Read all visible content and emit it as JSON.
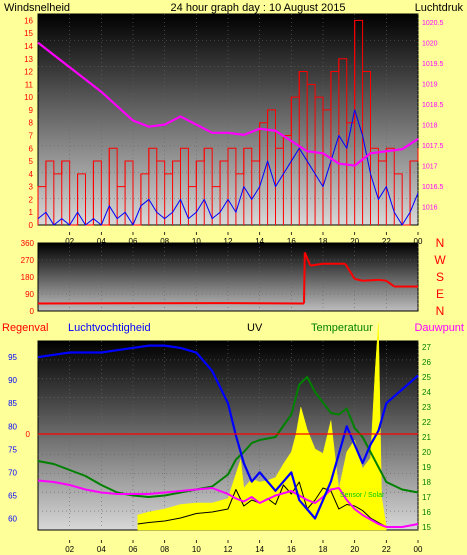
{
  "colors": {
    "background": "#ffff99",
    "wind": "#ff0000",
    "gust": "#0000ff",
    "pressure": "#ff00ff",
    "direction": "#ff0000",
    "rain": "#ff0000",
    "humidity": "#0000ff",
    "uv": "#ffff00",
    "temperature": "#008000",
    "dewpoint": "#ff00ff",
    "solar": "#000000",
    "title": "#0000ff"
  },
  "panel1": {
    "title_left": "Windsnelheid",
    "title_center": "24 hour graph day : 10 August 2015",
    "title_right": "Luchtdruk"
  },
  "panel3": {
    "label_rain": "Regenval",
    "label_humidity": "Luchtvochtigheid",
    "label_uv": "UV",
    "label_temperature": "Temperatuur",
    "label_dewpoint": "Dauwpunt",
    "inset_label": "Sensor / Solar"
  },
  "chart_data": [
    {
      "type": "line",
      "title": "24 hour graph day : 10 August 2015",
      "x_tick_labels": [
        "02",
        "04",
        "06",
        "08",
        "10",
        "12",
        "14",
        "16",
        "18",
        "20",
        "22",
        "00"
      ],
      "y_left_label": "Windsnelheid",
      "y_left_ticks": [
        0,
        1,
        2,
        3,
        4,
        5,
        6,
        7,
        8,
        9,
        10,
        11,
        12,
        13,
        14,
        15,
        16
      ],
      "y_left_range": [
        0,
        16.5
      ],
      "y_right_label": "Luchtdruk",
      "y_right_ticks": [
        1016,
        1016.5,
        1017,
        1017.5,
        1018,
        1018.5,
        1019,
        1019.5,
        1020,
        1020.5
      ],
      "y_right_range": [
        1015.55,
        1020.7
      ],
      "series": [
        {
          "name": "Windsnelheid (max)",
          "x": [
            0,
            0.5,
            1,
            1.5,
            2,
            2.5,
            3,
            3.5,
            4,
            4.5,
            5,
            5.5,
            6,
            6.5,
            7,
            7.5,
            8,
            8.5,
            9,
            9.5,
            10,
            10.5,
            11,
            11.5,
            12,
            12.5,
            13,
            13.5,
            14,
            14.5,
            15,
            15.5,
            16,
            16.5,
            17,
            17.5,
            18,
            18.5,
            19,
            19.5,
            20,
            20.5,
            21,
            21.5,
            22,
            22.5,
            23,
            23.5,
            24
          ],
          "values": [
            3,
            5,
            4,
            5,
            0,
            4,
            0,
            5,
            0,
            6,
            3,
            5,
            0,
            4,
            6,
            5,
            4,
            5,
            6,
            3,
            5,
            6,
            3,
            5,
            6,
            4,
            6,
            5,
            8,
            9,
            6,
            7,
            10,
            12,
            11,
            10,
            9,
            12,
            13,
            8,
            16,
            12,
            6,
            5,
            6,
            4,
            0,
            5,
            6
          ]
        },
        {
          "name": "Windsnelheid (gem)",
          "x": [
            0,
            0.5,
            1,
            1.5,
            2,
            2.5,
            3,
            3.5,
            4,
            4.5,
            5,
            5.5,
            6,
            6.5,
            7,
            7.5,
            8,
            8.5,
            9,
            9.5,
            10,
            10.5,
            11,
            11.5,
            12,
            12.5,
            13,
            13.5,
            14,
            14.5,
            15,
            15.5,
            16,
            16.5,
            17,
            17.5,
            18,
            18.5,
            19,
            19.5,
            20,
            20.5,
            21,
            21.5,
            22,
            22.5,
            23,
            23.5,
            24
          ],
          "values": [
            0.5,
            1,
            0,
            0.5,
            0,
            1,
            0,
            0.5,
            0,
            1.5,
            0.5,
            1,
            0,
            1.5,
            2,
            1,
            0.5,
            1,
            2,
            0.5,
            1,
            2,
            0.5,
            1,
            2,
            1,
            3,
            2,
            3,
            5,
            3,
            4,
            5,
            6,
            5,
            4,
            3,
            5,
            7,
            6,
            9,
            7,
            4,
            2,
            3,
            1,
            0,
            1,
            2.5
          ]
        },
        {
          "name": "Luchtdruk",
          "x": [
            0,
            1,
            2,
            3,
            4,
            5,
            6,
            7,
            8,
            9,
            10,
            11,
            12,
            13,
            14,
            15,
            16,
            17,
            18,
            19,
            20,
            21,
            22,
            23,
            24
          ],
          "values": [
            1020.0,
            1019.7,
            1019.4,
            1019.1,
            1018.8,
            1018.45,
            1018.1,
            1017.95,
            1018.0,
            1018.2,
            1018.0,
            1017.8,
            1017.8,
            1017.75,
            1017.9,
            1017.85,
            1017.6,
            1017.35,
            1017.3,
            1017.05,
            1017.0,
            1017.3,
            1017.35,
            1017.4,
            1017.65
          ]
        }
      ]
    },
    {
      "type": "line",
      "x_tick_labels": [
        "02",
        "04",
        "06",
        "08",
        "10",
        "12",
        "14",
        "16",
        "18",
        "20",
        "22",
        "00"
      ],
      "y_left_ticks": [
        0,
        90,
        180,
        270,
        360
      ],
      "y_left_range": [
        0,
        360
      ],
      "y_right_ticks": [
        "N",
        "W",
        "S",
        "E",
        "N"
      ],
      "series": [
        {
          "name": "Windrichting",
          "x": [
            0,
            6,
            12,
            16.8,
            16.85,
            17.2,
            18,
            19.4,
            20,
            20.5,
            21.5,
            22,
            22.5,
            24
          ],
          "values": [
            40,
            41,
            42,
            40,
            310,
            240,
            250,
            250,
            170,
            160,
            165,
            160,
            130,
            130
          ]
        }
      ]
    },
    {
      "type": "line",
      "x_tick_labels": [
        "02",
        "04",
        "06",
        "08",
        "10",
        "12",
        "14",
        "16",
        "18",
        "20",
        "22",
        "00"
      ],
      "y_left_ticks": [
        60,
        65,
        70,
        75,
        80,
        85,
        90,
        95
      ],
      "y_left_range": [
        57.5,
        98.5
      ],
      "y_right_ticks": [
        15,
        16,
        17,
        18,
        19,
        20,
        21,
        22,
        23,
        24,
        25,
        26,
        27
      ],
      "y_right_range": [
        14.8,
        27.4
      ],
      "rain_tick_label": "0",
      "series": [
        {
          "name": "Luchtvochtigheid",
          "x": [
            0,
            1,
            2,
            3,
            4,
            5,
            6,
            7,
            8,
            9,
            10,
            11,
            12,
            12.5,
            13,
            13.5,
            14,
            15,
            16,
            16.5,
            17,
            17.5,
            18,
            18.5,
            19,
            19.5,
            20,
            20.5,
            21,
            21.5,
            22,
            23,
            24
          ],
          "values": [
            95,
            95.5,
            96,
            96,
            96,
            96.5,
            97,
            97.5,
            97.5,
            97,
            96,
            92,
            85,
            78,
            72,
            68,
            70,
            66,
            70,
            64,
            62,
            60,
            64,
            68,
            74,
            80,
            76,
            72,
            76,
            79,
            85,
            88,
            91
          ]
        },
        {
          "name": "Temperatuur",
          "x": [
            0,
            1,
            2,
            3,
            4,
            5,
            6,
            7,
            8,
            9,
            10,
            11,
            12,
            12.5,
            13,
            13.5,
            14,
            15,
            16,
            16.5,
            17,
            17.5,
            18,
            18.5,
            19,
            19.5,
            20,
            20.5,
            21,
            21.5,
            22,
            23,
            24
          ],
          "values": [
            19.4,
            19.2,
            18.8,
            18.4,
            17.8,
            17.3,
            17.1,
            17.0,
            17.1,
            17.3,
            17.5,
            17.7,
            18.5,
            19.5,
            20.0,
            20.6,
            20.8,
            21.0,
            22.5,
            24.5,
            25.0,
            24.0,
            23.3,
            22.6,
            22.5,
            22.9,
            21.6,
            21.0,
            20.0,
            19.0,
            18.0,
            17.5,
            17.3
          ]
        },
        {
          "name": "Dauwpunt",
          "x": [
            0,
            1,
            2,
            3,
            4,
            5,
            6,
            7,
            8,
            9,
            10,
            11,
            12,
            12.5,
            13,
            13.5,
            14,
            15,
            16,
            16.5,
            17,
            17.5,
            18,
            18.5,
            19,
            19.5,
            20,
            20.5,
            21,
            21.5,
            22,
            23,
            24
          ],
          "values": [
            18.1,
            18.0,
            17.8,
            17.5,
            17.3,
            17.2,
            17.2,
            17.2,
            17.3,
            17.4,
            17.5,
            17.6,
            17.2,
            16.9,
            16.7,
            17.0,
            16.6,
            17.1,
            17.4,
            17.1,
            16.8,
            16.6,
            17.0,
            17.5,
            17.6,
            16.8,
            16.2,
            15.8,
            15.5,
            15.2,
            15.0,
            15.0,
            15.2
          ]
        },
        {
          "name": "UV",
          "x": [
            6.3,
            7,
            8,
            9,
            10,
            11,
            12,
            12.8,
            13,
            13.5,
            14,
            14.5,
            15,
            15.5,
            16,
            16.3,
            16.6,
            17,
            17.5,
            18,
            18.5,
            19,
            19.5,
            20,
            20.5,
            21,
            21.3,
            21.5,
            21.7,
            22
          ],
          "values": [
            0.8,
            1.0,
            1.2,
            1.5,
            1.6,
            1.6,
            1.9,
            4.5,
            2.6,
            3.2,
            3.0,
            3.1,
            3.3,
            4.2,
            5.0,
            6.2,
            8.0,
            6.5,
            5.2,
            4.9,
            7.1,
            2.5,
            5.0,
            5.8,
            3.9,
            4.6,
            10.5,
            13.6,
            2.0,
            0
          ]
        },
        {
          "name": "Solar",
          "x": [
            6.3,
            7,
            8,
            9,
            10,
            11,
            12,
            12.5,
            13,
            13.5,
            14,
            14.5,
            15,
            15.5,
            16,
            16.5,
            17,
            17.5,
            18,
            18.5,
            19,
            19.5,
            20,
            20.5,
            21,
            21.5,
            22
          ],
          "values": [
            0.2,
            0.3,
            0.4,
            0.6,
            0.9,
            1.0,
            1.2,
            2.5,
            1.4,
            1.8,
            1.6,
            1.9,
            1.5,
            2.8,
            2.2,
            3.0,
            1.2,
            1.8,
            2.6,
            2.4,
            1.2,
            1.5,
            1.4,
            1.1,
            0.6,
            0.3,
            0
          ]
        }
      ]
    }
  ]
}
